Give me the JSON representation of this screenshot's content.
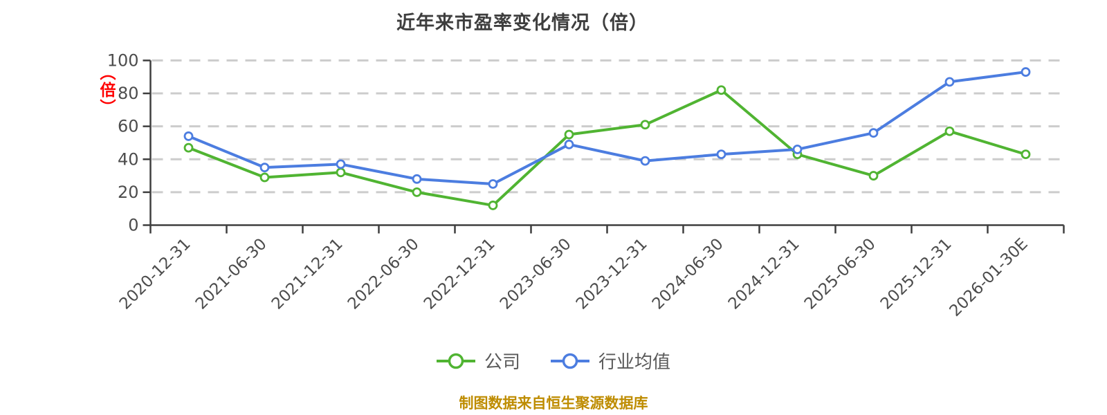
{
  "chart_data": {
    "type": "line",
    "title": "近年来市盈率变化情况（倍）",
    "y_axis_unit": "（倍）",
    "categories": [
      "2020-12-31",
      "2021-06-30",
      "2021-12-31",
      "2022-06-30",
      "2022-12-31",
      "2023-06-30",
      "2023-12-31",
      "2024-06-30",
      "2024-12-31",
      "2025-06-30",
      "2025-12-31",
      "2026-01-30E"
    ],
    "series": [
      {
        "name": "公司",
        "color": "#50B432",
        "marker": "circle",
        "marker_fill": "#ffffff",
        "values": [
          47,
          29,
          32,
          20,
          12,
          55,
          61,
          82,
          43,
          30,
          57,
          43
        ]
      },
      {
        "name": "行业均值",
        "color": "#4C7DE0",
        "marker": "circle",
        "marker_fill": "#ffffff",
        "values": [
          54,
          35,
          37,
          28,
          25,
          49,
          39,
          43,
          46,
          56,
          87,
          93
        ]
      }
    ],
    "ylim": [
      0,
      100
    ],
    "yticks": [
      0,
      20,
      40,
      60,
      80,
      100
    ],
    "grid": "horizontal-dashed",
    "grid_color": "#cccccc",
    "axis_color": "#3e3e3e",
    "tick_label_color": "#4c4c4c",
    "title_color": "#3e3e3e",
    "y_axis_unit_color": "#ff0000",
    "legend_position": "bottom",
    "legend_text_color": "#595959",
    "source_note": "制图数据来自恒生聚源数据库",
    "source_note_color": "#be8c00"
  }
}
